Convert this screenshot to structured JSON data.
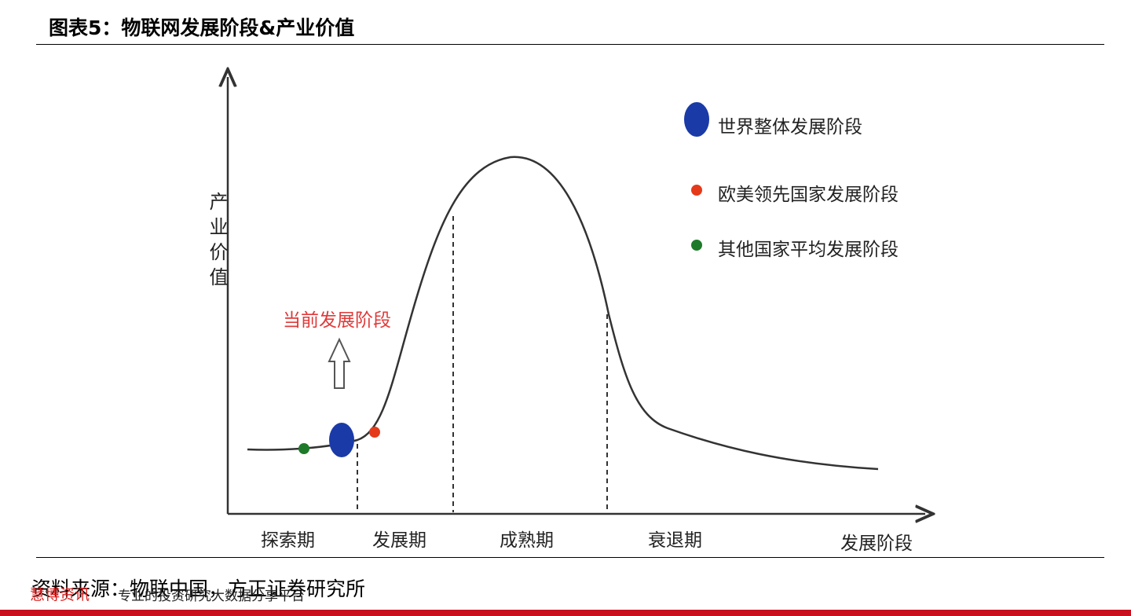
{
  "header": {
    "title": "图表5：物联网发展阶段&产业价值"
  },
  "diagram": {
    "y_axis_label": "产业价值",
    "x_axis_label": "发展阶段",
    "stages": [
      "探索期",
      "发展期",
      "成熟期",
      "衰退期"
    ],
    "legend": [
      "世界整体发展阶段",
      "欧美领先国家发展阶段",
      "其他国家平均发展阶段"
    ],
    "annotation": "当前发展阶段"
  },
  "footer": {
    "source": "资料来源：物联中国，方正证券研究所",
    "watermark_brand": "慧博资讯",
    "watermark_slogan": "专业的投资研究大数据分享平台"
  }
}
